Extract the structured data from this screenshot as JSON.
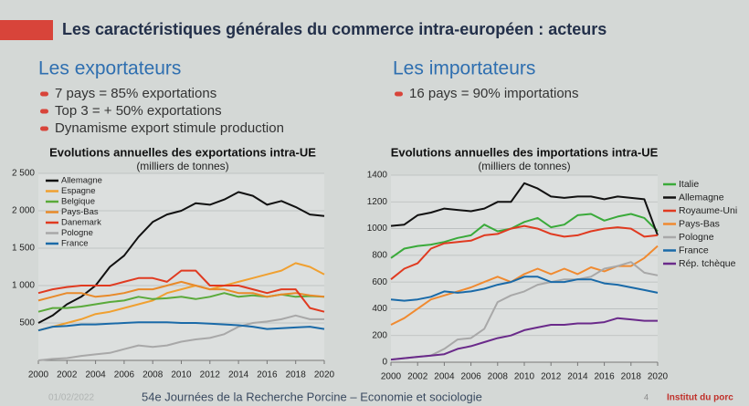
{
  "slide": {
    "title": "Les caractéristiques générales du commerce intra-européen : acteurs",
    "left_heading": "Les exportateurs",
    "left_bullets": [
      "7 pays = 85% exportations",
      "Top 3 = + 50% exportations",
      "Dynamisme export stimule production"
    ],
    "right_heading": "Les importateurs",
    "right_bullets": [
      "16 pays = 90% importations"
    ],
    "footer_date": "01/02/2022",
    "footer": "54e Journées de la Recherche Porcine – Economie et sociologie",
    "page": "4",
    "brand": "Institut du porc"
  },
  "chart_data": [
    {
      "type": "line",
      "title": "Evolutions annuelles des exportations intra-UE",
      "subtitle": "(milliers de tonnes)",
      "legend": "upper left",
      "x": [
        2000,
        2001,
        2002,
        2003,
        2004,
        2005,
        2006,
        2007,
        2008,
        2009,
        2010,
        2011,
        2012,
        2013,
        2014,
        2015,
        2016,
        2017,
        2018,
        2019,
        2020
      ],
      "xlim": [
        2000,
        2020
      ],
      "xticks": [
        2000,
        2002,
        2004,
        2006,
        2008,
        2010,
        2012,
        2014,
        2016,
        2018,
        2020
      ],
      "ylim": [
        0,
        2500
      ],
      "yticks": [
        500,
        {
          "value": 1000,
          "label": "1 000"
        },
        {
          "value": 1500,
          "label": "1 500"
        },
        {
          "value": 2000,
          "label": "2 000"
        },
        {
          "value": 2500,
          "label": "2 500"
        }
      ],
      "series": [
        {
          "name": "Allemagne",
          "color": "#111111",
          "values": [
            500,
            600,
            750,
            850,
            1000,
            1250,
            1400,
            1650,
            1850,
            1950,
            2000,
            2100,
            2080,
            2150,
            2250,
            2200,
            2080,
            2130,
            2050,
            1950,
            1930
          ]
        },
        {
          "name": "Espagne",
          "color": "#f0a030",
          "values": [
            400,
            450,
            500,
            550,
            620,
            650,
            700,
            750,
            800,
            900,
            950,
            1000,
            950,
            1000,
            1050,
            1100,
            1150,
            1200,
            1300,
            1250,
            1150
          ]
        },
        {
          "name": "Belgique",
          "color": "#5aaa3a",
          "values": [
            650,
            700,
            700,
            720,
            750,
            780,
            800,
            850,
            820,
            830,
            850,
            820,
            850,
            900,
            850,
            870,
            850,
            880,
            850,
            860,
            850
          ]
        },
        {
          "name": "Pays-Bas",
          "color": "#e88a2a",
          "values": [
            800,
            850,
            900,
            900,
            850,
            870,
            900,
            950,
            950,
            1000,
            1050,
            1000,
            950,
            950,
            900,
            900,
            850,
            880,
            900,
            870,
            850
          ]
        },
        {
          "name": "Danemark",
          "color": "#e03a20",
          "values": [
            900,
            950,
            980,
            1000,
            1000,
            1000,
            1050,
            1100,
            1100,
            1050,
            1200,
            1200,
            1000,
            1000,
            1000,
            950,
            900,
            950,
            950,
            700,
            650
          ]
        },
        {
          "name": "Pologne",
          "color": "#a8a8a8",
          "values": [
            0,
            20,
            30,
            60,
            80,
            100,
            150,
            200,
            180,
            200,
            250,
            280,
            300,
            350,
            450,
            500,
            520,
            550,
            600,
            550,
            550
          ]
        },
        {
          "name": "France",
          "color": "#1a6aa8",
          "values": [
            400,
            450,
            460,
            480,
            480,
            490,
            500,
            510,
            510,
            510,
            500,
            500,
            490,
            480,
            470,
            450,
            420,
            430,
            440,
            450,
            420
          ]
        }
      ]
    },
    {
      "type": "line",
      "title": "Evolutions annuelles des importations intra-UE",
      "subtitle": "(milliers de tonnes)",
      "legend": "right",
      "x": [
        2000,
        2001,
        2002,
        2003,
        2004,
        2005,
        2006,
        2007,
        2008,
        2009,
        2010,
        2011,
        2012,
        2013,
        2014,
        2015,
        2016,
        2017,
        2018,
        2019,
        2020
      ],
      "xlim": [
        2000,
        2020
      ],
      "xticks": [
        2000,
        2002,
        2004,
        2006,
        2008,
        2010,
        2012,
        2014,
        2016,
        2018,
        2020
      ],
      "ylim": [
        0,
        1400
      ],
      "yticks": [
        0,
        200,
        400,
        600,
        800,
        1000,
        1200,
        1400
      ],
      "series": [
        {
          "name": "Italie",
          "color": "#3aaa3a",
          "values": [
            780,
            850,
            870,
            880,
            900,
            930,
            950,
            1030,
            980,
            1000,
            1050,
            1080,
            1010,
            1030,
            1100,
            1110,
            1060,
            1090,
            1110,
            1080,
            980
          ]
        },
        {
          "name": "Allemagne",
          "color": "#111111",
          "values": [
            1020,
            1030,
            1100,
            1120,
            1150,
            1140,
            1130,
            1150,
            1200,
            1200,
            1340,
            1300,
            1240,
            1230,
            1240,
            1240,
            1220,
            1240,
            1230,
            1220,
            950
          ]
        },
        {
          "name": "Royaume-Uni",
          "color": "#e03a20",
          "values": [
            620,
            700,
            740,
            850,
            890,
            900,
            910,
            950,
            960,
            1000,
            1020,
            1000,
            960,
            940,
            950,
            980,
            1000,
            1010,
            1000,
            940,
            950
          ]
        },
        {
          "name": "Pays-Bas",
          "color": "#f08a30",
          "values": [
            280,
            330,
            400,
            470,
            500,
            530,
            560,
            600,
            640,
            600,
            660,
            700,
            660,
            700,
            660,
            710,
            680,
            720,
            720,
            780,
            870
          ]
        },
        {
          "name": "Pologne",
          "color": "#a8a8a8",
          "values": [
            20,
            30,
            40,
            50,
            100,
            170,
            180,
            250,
            450,
            500,
            530,
            580,
            600,
            620,
            620,
            640,
            700,
            720,
            750,
            670,
            650
          ]
        },
        {
          "name": "France",
          "color": "#1a6aa8",
          "values": [
            470,
            460,
            470,
            490,
            530,
            520,
            530,
            550,
            580,
            600,
            640,
            640,
            600,
            600,
            620,
            620,
            590,
            580,
            560,
            540,
            520
          ]
        },
        {
          "name": "Rép. tchèque",
          "color": "#6a2a8a",
          "values": [
            20,
            30,
            40,
            50,
            60,
            100,
            120,
            150,
            180,
            200,
            240,
            260,
            280,
            280,
            290,
            290,
            300,
            330,
            320,
            310,
            310
          ]
        }
      ]
    }
  ]
}
